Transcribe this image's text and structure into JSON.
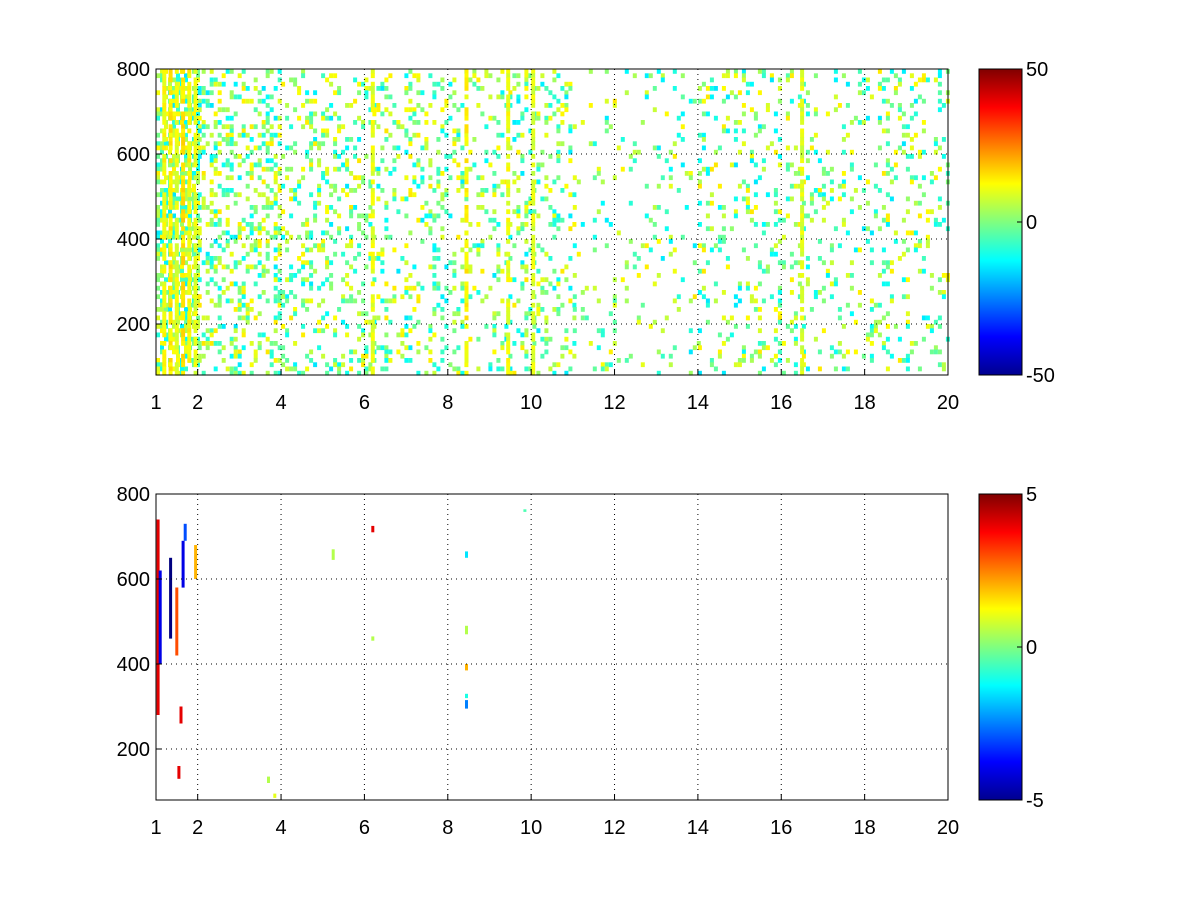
{
  "chart_data": [
    {
      "type": "heatmap",
      "title": "",
      "xlabel": "",
      "ylabel": "",
      "grid": true,
      "xlim": [
        1,
        20
      ],
      "ylim": [
        80,
        800
      ],
      "xticks": [
        1,
        2,
        4,
        6,
        8,
        10,
        12,
        14,
        16,
        18,
        20
      ],
      "xtick_labels": [
        "1",
        "2",
        "4",
        "6",
        "8",
        "10",
        "12",
        "14",
        "16",
        "18",
        "20"
      ],
      "yticks": [
        200,
        400,
        600,
        800
      ],
      "ytick_labels": [
        "200",
        "400",
        "600",
        "800"
      ],
      "colorbar": {
        "colormap": "jet",
        "clim": [
          -50,
          50
        ],
        "ticks": [
          -50,
          0,
          50
        ],
        "tick_labels": [
          "-50",
          "0",
          "50"
        ]
      },
      "background_color": "#ffffff",
      "dominant_values_range": [
        -15,
        15
      ],
      "column_bands": [
        {
          "x": 1.2,
          "value": 12
        },
        {
          "x": 1.35,
          "value": 14
        },
        {
          "x": 1.5,
          "value": 10
        },
        {
          "x": 1.65,
          "value": 15
        },
        {
          "x": 1.8,
          "value": 12
        },
        {
          "x": 1.95,
          "value": 10
        },
        {
          "x": 6.2,
          "value": 10
        },
        {
          "x": 8.45,
          "value": 13
        },
        {
          "x": 9.45,
          "value": 11
        },
        {
          "x": 10.05,
          "value": 9
        },
        {
          "x": 16.5,
          "value": 9
        }
      ],
      "density_profile": [
        {
          "x_range": [
            1,
            2
          ],
          "density": 0.55
        },
        {
          "x_range": [
            2,
            4
          ],
          "density": 0.3
        },
        {
          "x_range": [
            4,
            6
          ],
          "density": 0.2
        },
        {
          "x_range": [
            6,
            11
          ],
          "density": 0.18
        },
        {
          "x_range": [
            11,
            14
          ],
          "density": 0.08
        },
        {
          "x_range": [
            14,
            20
          ],
          "density": 0.14
        }
      ]
    },
    {
      "type": "heatmap",
      "title": "",
      "xlabel": "",
      "ylabel": "",
      "grid": true,
      "xlim": [
        1,
        20
      ],
      "ylim": [
        80,
        800
      ],
      "xticks": [
        1,
        2,
        4,
        6,
        8,
        10,
        12,
        14,
        16,
        18,
        20
      ],
      "xtick_labels": [
        "1",
        "2",
        "4",
        "6",
        "8",
        "10",
        "12",
        "14",
        "16",
        "18",
        "20"
      ],
      "yticks": [
        200,
        400,
        600,
        800
      ],
      "ytick_labels": [
        "200",
        "400",
        "600",
        "800"
      ],
      "colorbar": {
        "colormap": "jet",
        "clim": [
          -5,
          5
        ],
        "ticks": [
          -5,
          0,
          5
        ],
        "tick_labels": [
          "-5",
          "0",
          "5"
        ]
      },
      "background_color": "#ffffff",
      "spots": [
        {
          "x": 1.05,
          "y0": 280,
          "y1": 740,
          "value": 4
        },
        {
          "x": 1.1,
          "y0": 400,
          "y1": 620,
          "value": -4
        },
        {
          "x": 1.35,
          "y0": 460,
          "y1": 650,
          "value": -5
        },
        {
          "x": 1.5,
          "y0": 420,
          "y1": 580,
          "value": 3
        },
        {
          "x": 1.6,
          "y0": 260,
          "y1": 300,
          "value": 4
        },
        {
          "x": 1.65,
          "y0": 580,
          "y1": 690,
          "value": -4
        },
        {
          "x": 1.7,
          "y0": 690,
          "y1": 730,
          "value": -3
        },
        {
          "x": 1.95,
          "y0": 600,
          "y1": 680,
          "value": 2
        },
        {
          "x": 1.55,
          "y0": 130,
          "y1": 160,
          "value": 4
        },
        {
          "x": 3.7,
          "y0": 120,
          "y1": 135,
          "value": 0.5
        },
        {
          "x": 3.85,
          "y0": 85,
          "y1": 95,
          "value": 1
        },
        {
          "x": 5.25,
          "y0": 645,
          "y1": 670,
          "value": 0.5
        },
        {
          "x": 6.2,
          "y0": 710,
          "y1": 725,
          "value": 4
        },
        {
          "x": 6.2,
          "y0": 455,
          "y1": 465,
          "value": 0.5
        },
        {
          "x": 8.45,
          "y0": 650,
          "y1": 665,
          "value": -1.5
        },
        {
          "x": 8.45,
          "y0": 470,
          "y1": 490,
          "value": 0.5
        },
        {
          "x": 8.45,
          "y0": 385,
          "y1": 400,
          "value": 2
        },
        {
          "x": 8.45,
          "y0": 320,
          "y1": 330,
          "value": -1
        },
        {
          "x": 8.45,
          "y0": 295,
          "y1": 315,
          "value": -2.5
        },
        {
          "x": 9.85,
          "y0": 758,
          "y1": 764,
          "value": -0.5
        }
      ]
    }
  ]
}
